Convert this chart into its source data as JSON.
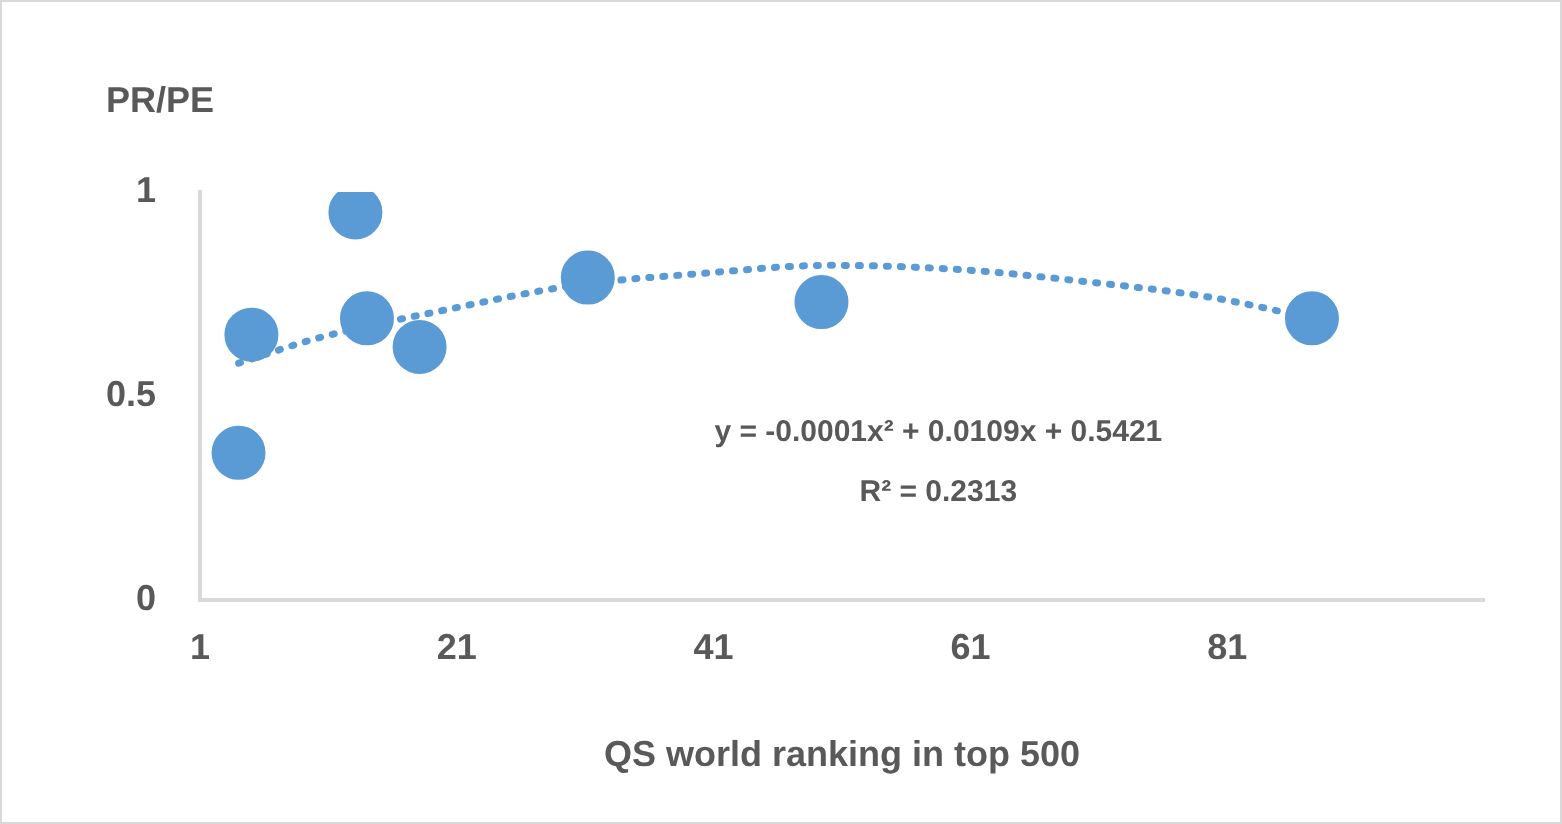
{
  "chart_data": {
    "type": "scatter",
    "ylabel": "PR/PE",
    "xlabel": "QS world ranking in top 500",
    "xlim": [
      1,
      101
    ],
    "xticks": [
      1,
      21,
      41,
      61,
      81
    ],
    "ylim": [
      0,
      1
    ],
    "yticks": [
      0,
      0.5,
      1
    ],
    "grid": false,
    "legend": false,
    "series": [
      {
        "marker": "circle",
        "color": "#5b9bd5",
        "x": [
          4,
          5,
          13.1,
          14,
          18.1,
          31.2,
          49.4,
          87.6
        ],
        "values": [
          0.36,
          0.65,
          0.95,
          0.69,
          0.62,
          0.79,
          0.73,
          0.69
        ]
      },
      {
        "type": "line",
        "line_style": "dotted",
        "color": "#5b9bd5",
        "x": [
          4,
          10,
          20,
          30,
          40,
          50,
          60,
          70,
          80,
          87.6
        ],
        "values": [
          0.58,
          0.64,
          0.71,
          0.77,
          0.8,
          0.82,
          0.81,
          0.78,
          0.74,
          0.69
        ]
      }
    ],
    "annotations": [
      "y = -0.0001x² + 0.0109x + 0.5421",
      "R² = 0.2313"
    ]
  }
}
